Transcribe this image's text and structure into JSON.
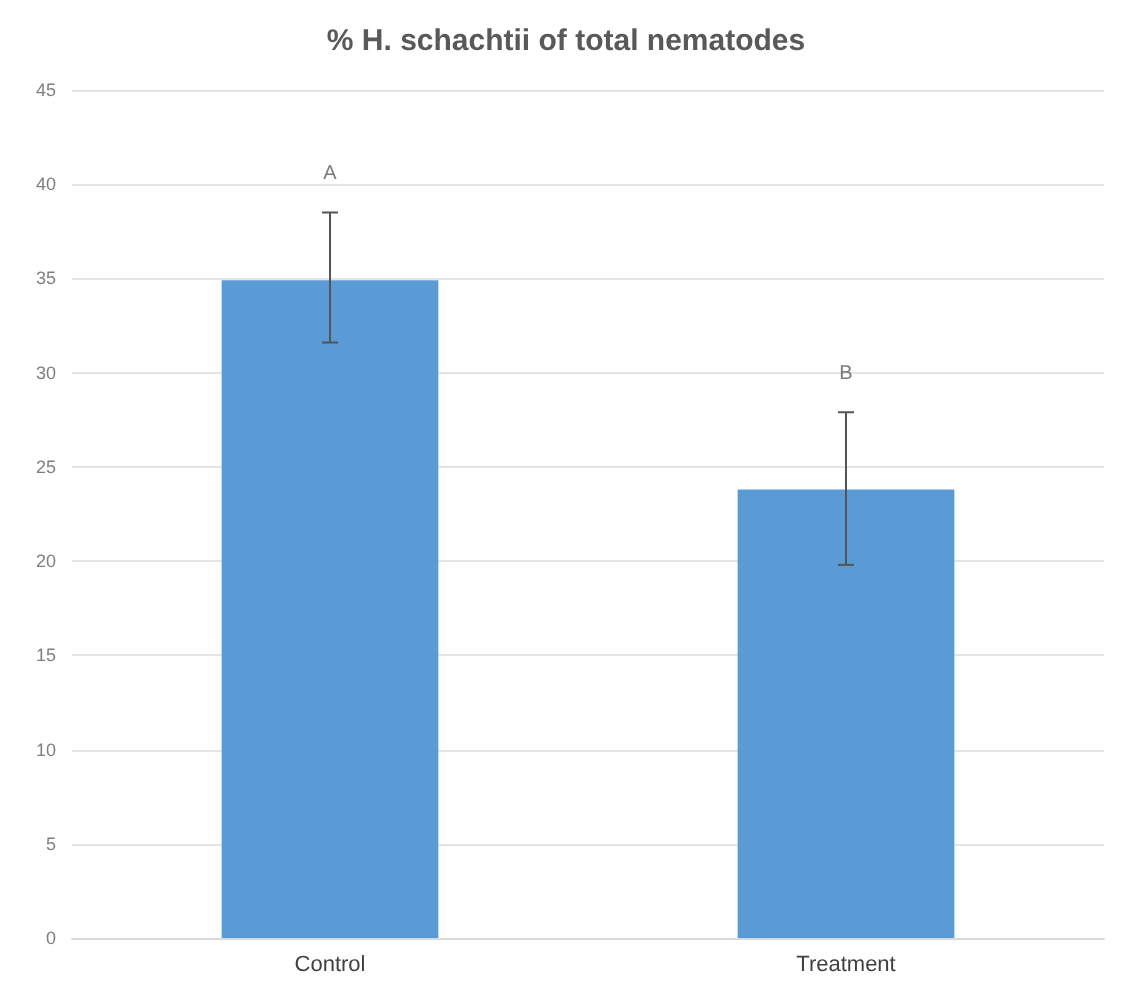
{
  "chart_data": {
    "type": "bar",
    "title": "% H. schachtii of total nematodes",
    "categories": [
      "Control",
      "Treatment"
    ],
    "values": [
      34.9,
      23.8
    ],
    "color": "#5b9bd5",
    "errors": [
      [
        31.6,
        38.5
      ],
      [
        19.8,
        27.9
      ]
    ],
    "ylim": [
      0,
      45
    ],
    "yticks": [
      0,
      5,
      10,
      15,
      20,
      25,
      30,
      35,
      40,
      45
    ],
    "grid": "y",
    "annotations": [
      "A",
      "B"
    ]
  }
}
